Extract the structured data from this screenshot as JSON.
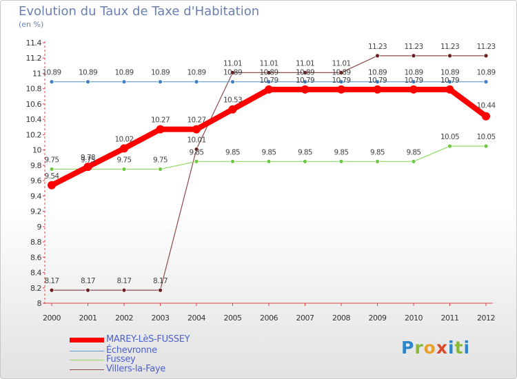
{
  "title": "Evolution du Taux de Taxe d'Habitation",
  "subtitle": "(en %)",
  "logo": "Proxiti",
  "chart_data": {
    "type": "line",
    "x": [
      "2000",
      "2001",
      "2002",
      "2003",
      "2004",
      "2005",
      "2006",
      "2007",
      "2008",
      "2009",
      "2010",
      "2011",
      "2012"
    ],
    "ylim": [
      8,
      11.4
    ],
    "yticks": [
      "8",
      "8.2",
      "8.4",
      "8.6",
      "8.8",
      "9",
      "9.2",
      "9.4",
      "9.6",
      "9.8",
      "10",
      "10.2",
      "10.4",
      "10.6",
      "10.8",
      "11",
      "11.2",
      "11.4"
    ],
    "series": [
      {
        "name": "MAREY-LèS-FUSSEY",
        "color": "#ff0000",
        "values": [
          9.54,
          9.78,
          10.02,
          10.27,
          10.27,
          10.53,
          10.79,
          10.79,
          10.79,
          10.79,
          10.79,
          10.79,
          10.44
        ],
        "labels": [
          "9.54",
          "9.78",
          "10.02",
          "10.27",
          "10.27",
          "10.53",
          "10.79",
          "10.79",
          "10.79",
          "10.79",
          "10.79",
          "10.79",
          "10.44"
        ]
      },
      {
        "name": "Échevronne",
        "color": "#5b9bd5",
        "values": [
          10.89,
          10.89,
          10.89,
          10.89,
          10.89,
          10.89,
          10.89,
          10.89,
          10.89,
          10.89,
          10.89,
          10.89,
          10.89
        ],
        "labels": [
          "10.89",
          "10.89",
          "10.89",
          "10.89",
          "10.89",
          "10.89",
          "10.89",
          "10.89",
          "10.89",
          "10.89",
          "10.89",
          "10.89",
          "10.89"
        ]
      },
      {
        "name": "Fussey",
        "color": "#90d860",
        "values": [
          9.75,
          9.75,
          9.75,
          9.75,
          9.85,
          9.85,
          9.85,
          9.85,
          9.85,
          9.85,
          9.85,
          10.05,
          10.05
        ],
        "labels": [
          "9.75",
          "9.75",
          "9.75",
          "9.75",
          "9.85",
          "9.85",
          "9.85",
          "9.85",
          "9.85",
          "9.85",
          "9.85",
          "10.05",
          "10.05"
        ]
      },
      {
        "name": "Villers-la-Faye",
        "color": "#8b4a4a",
        "values": [
          8.17,
          8.17,
          8.17,
          8.17,
          10.01,
          11.01,
          11.01,
          11.01,
          11.01,
          11.23,
          11.23,
          11.23,
          11.23
        ],
        "labels": [
          "8.17",
          "8.17",
          "8.17",
          "8.17",
          "10.01",
          "11.01",
          "11.01",
          "11.01",
          "11.01",
          "11.23",
          "11.23",
          "11.23",
          "11.23"
        ]
      }
    ]
  }
}
